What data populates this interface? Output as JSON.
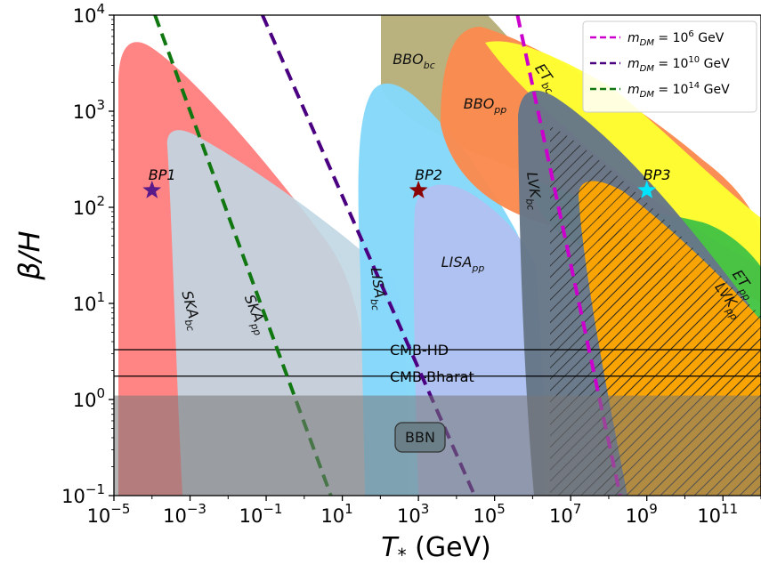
{
  "chart_data": {
    "type": "line",
    "xlabel": "T_* (GeV)",
    "ylabel": "β/H",
    "xscale": "log",
    "yscale": "log",
    "xlim": [
      1e-05,
      1000000000000.0
    ],
    "ylim": [
      0.1,
      10000
    ],
    "x_ticks": [
      {
        "exp": "-5"
      },
      {
        "exp": "-3"
      },
      {
        "exp": "-1"
      },
      {
        "exp": "1"
      },
      {
        "exp": "3"
      },
      {
        "exp": "5"
      },
      {
        "exp": "7"
      },
      {
        "exp": "9"
      },
      {
        "exp": "11"
      }
    ],
    "y_ticks": [
      {
        "exp": "-1"
      },
      {
        "exp": "0"
      },
      {
        "exp": "1"
      },
      {
        "exp": "2"
      },
      {
        "exp": "3"
      },
      {
        "exp": "4"
      }
    ],
    "colors": {
      "ska_bc": "#ff8080",
      "ska_pp": "#c0d7e3",
      "lisa_bc": "#85d8fa",
      "lisa_pp": "#b5bff0",
      "bbo_bc": "#b8b07a",
      "bbo_pp": "#fa8a50",
      "et_bc": "#ffff33",
      "et_pp": "#44c444",
      "lvk_bc": "#667788",
      "lvk_pp": "#ffa500",
      "bbn": "#777777",
      "dm_1e6": "#cc00cc",
      "dm_1e10": "#4b0082",
      "dm_1e14": "#117711"
    },
    "regions": [
      {
        "key": "ska_bc",
        "label": "SKA_bc"
      },
      {
        "key": "ska_pp",
        "label": "SKA_pp"
      },
      {
        "key": "lisa_bc",
        "label": "LISA_bc"
      },
      {
        "key": "lisa_pp",
        "label": "LISA_pp"
      },
      {
        "key": "bbo_bc",
        "label": "BBO_bc"
      },
      {
        "key": "bbo_pp",
        "label": "BBO_pp"
      },
      {
        "key": "et_bc",
        "label": "ET_bc"
      },
      {
        "key": "et_pp",
        "label": "ET_pp"
      },
      {
        "key": "lvk_bc",
        "label": "LVK_bc"
      },
      {
        "key": "lvk_pp",
        "label": "LVK_pp"
      }
    ],
    "series": [
      {
        "name": "m_DM = 10^6 GeV",
        "color_key": "dm_1e6",
        "x": [
          400000.0,
          200000000.0
        ],
        "y": [
          10000,
          0.1
        ]
      },
      {
        "name": "m_DM = 10^10 GeV",
        "color_key": "dm_1e10",
        "x": [
          0.08,
          30000.0
        ],
        "y": [
          10000,
          0.1
        ]
      },
      {
        "name": "m_DM = 10^14 GeV",
        "color_key": "dm_1e14",
        "x": [
          0.00012,
          5
        ],
        "y": [
          10000,
          0.1
        ]
      }
    ],
    "legend": {
      "placement": "top-right",
      "entries": [
        {
          "prefix": "m",
          "sub": "DM",
          "mid": " = 10",
          "sup": "6",
          "suffix": " GeV",
          "color_key": "dm_1e6"
        },
        {
          "prefix": "m",
          "sub": "DM",
          "mid": " = 10",
          "sup": "10",
          "suffix": " GeV",
          "color_key": "dm_1e10"
        },
        {
          "prefix": "m",
          "sub": "DM",
          "mid": " = 10",
          "sup": "14",
          "suffix": " GeV",
          "color_key": "dm_1e14"
        }
      ]
    },
    "benchmark_points": [
      {
        "label": "BP1",
        "x": 0.0001,
        "y": 150,
        "color": "#5a1a8a"
      },
      {
        "label": "BP2",
        "x": 1000,
        "y": 150,
        "color": "#8b0000"
      },
      {
        "label": "BP3",
        "x": 1000000000.0,
        "y": 150,
        "color": "#00e5ff"
      }
    ],
    "hlines": [
      {
        "label": "CMB-HD",
        "y": 3.3
      },
      {
        "label": "CMB-Bharat",
        "y": 1.75
      }
    ],
    "bbn": {
      "label": "BBN",
      "y_max": 1.1
    }
  }
}
